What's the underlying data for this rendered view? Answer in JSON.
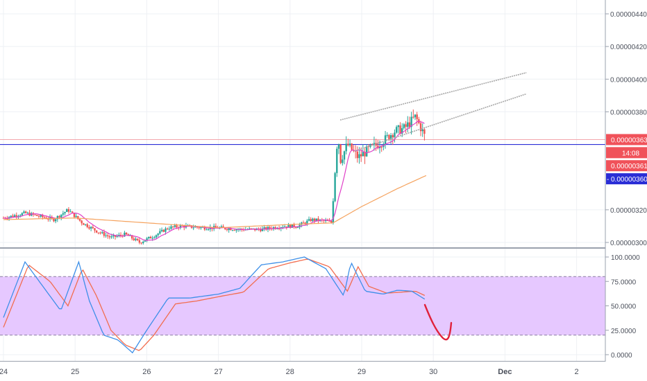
{
  "price_axis": {
    "ticks": [
      {
        "label": "0.00000440",
        "value": 440
      },
      {
        "label": "0.00000420",
        "value": 420
      },
      {
        "label": "0.00000400",
        "value": 400
      },
      {
        "label": "0.00000380",
        "value": 380
      },
      {
        "label": "0.00000320",
        "value": 320
      },
      {
        "label": "0.00000300",
        "value": 300
      }
    ],
    "badges": [
      {
        "label": "0.00000363",
        "value": 363,
        "bg": "#f0525a",
        "fg": "#ffffff",
        "name": "last-price-badge"
      },
      {
        "label": "14:08",
        "value": 355,
        "bg": "#f0525a",
        "fg": "#ffffff",
        "name": "countdown-badge"
      },
      {
        "label": "0.00000361",
        "value": 347,
        "bg": "#f0525a",
        "fg": "#ffffff",
        "name": "close-price-badge"
      },
      {
        "label": "0.00000360",
        "value": 339,
        "bg": "#2a2ed6",
        "fg": "#ffffff",
        "name": "horizontal-line-badge",
        "prefix": "-"
      }
    ]
  },
  "stoch_axis": {
    "ticks": [
      {
        "label": "100.0000",
        "value": 100
      },
      {
        "label": "75.0000",
        "value": 75
      },
      {
        "label": "50.0000",
        "value": 50
      },
      {
        "label": "25.0000",
        "value": 25
      },
      {
        "label": "0.0000",
        "value": 0
      }
    ]
  },
  "time_axis": {
    "labels": [
      {
        "label": "24",
        "day": 0
      },
      {
        "label": "25",
        "day": 1
      },
      {
        "label": "26",
        "day": 2
      },
      {
        "label": "27",
        "day": 3
      },
      {
        "label": "28",
        "day": 4
      },
      {
        "label": "29",
        "day": 5
      },
      {
        "label": "30",
        "day": 6
      },
      {
        "label": "Dec",
        "day": 7,
        "bold": true
      },
      {
        "label": "2",
        "day": 8
      }
    ]
  },
  "colors": {
    "bull": "#26a69a",
    "bear": "#ef5350",
    "ma_fast": "#e040c8",
    "ma_slow": "#f5a25d",
    "hline": "#2a2ed6",
    "resist": "#f3a6ac",
    "stoch_k": "#3d8fe8",
    "stoch_d": "#f26d4f",
    "stoch_band": "#e6c8ff",
    "trend": "#a8a8a8",
    "annotation": "#e0213b",
    "grid": "#eef0f4"
  },
  "chart_data": {
    "type": "candlestick",
    "instrument_levels": {
      "horizontal_line": 360,
      "resistance_line": 363
    },
    "price_scale_unit": "1e-8",
    "price_range": [
      298,
      452
    ],
    "stoch_range": [
      -5,
      110
    ],
    "stoch_bands": [
      20,
      80
    ],
    "trendlines": [
      {
        "from": [
          4.7,
          375
        ],
        "to": [
          7.3,
          404
        ]
      },
      {
        "from": [
          4.9,
          356
        ],
        "to": [
          7.3,
          391
        ]
      }
    ],
    "candles_anchor": [
      [
        0.0,
        315
      ],
      [
        0.3,
        318
      ],
      [
        0.5,
        316
      ],
      [
        0.7,
        314
      ],
      [
        0.9,
        320
      ],
      [
        1.1,
        312
      ],
      [
        1.3,
        307
      ],
      [
        1.5,
        303
      ],
      [
        1.7,
        305
      ],
      [
        1.9,
        300
      ],
      [
        2.1,
        304
      ],
      [
        2.3,
        309
      ],
      [
        2.5,
        310
      ],
      [
        2.8,
        309
      ],
      [
        3.0,
        309
      ],
      [
        3.3,
        308
      ],
      [
        3.6,
        308
      ],
      [
        3.9,
        310
      ],
      [
        4.1,
        310
      ],
      [
        4.3,
        314
      ],
      [
        4.5,
        313
      ],
      [
        4.6,
        312
      ],
      [
        4.65,
        345
      ],
      [
        4.8,
        360
      ],
      [
        4.95,
        352
      ],
      [
        5.1,
        357
      ],
      [
        5.3,
        362
      ],
      [
        5.45,
        368
      ],
      [
        5.6,
        370
      ],
      [
        5.75,
        377
      ],
      [
        5.85,
        368
      ],
      [
        5.9,
        363
      ]
    ],
    "ma_slow_anchor": [
      [
        0.0,
        314
      ],
      [
        1.0,
        315
      ],
      [
        2.0,
        312
      ],
      [
        3.0,
        309
      ],
      [
        4.0,
        311
      ],
      [
        4.6,
        312
      ],
      [
        5.0,
        322
      ],
      [
        5.5,
        333
      ],
      [
        5.9,
        341
      ]
    ],
    "stoch_k_anchor": [
      [
        0.0,
        38
      ],
      [
        0.3,
        95
      ],
      [
        0.6,
        65
      ],
      [
        0.8,
        45
      ],
      [
        1.05,
        95
      ],
      [
        1.2,
        55
      ],
      [
        1.4,
        20
      ],
      [
        1.6,
        15
      ],
      [
        1.8,
        2
      ],
      [
        2.0,
        25
      ],
      [
        2.3,
        58
      ],
      [
        2.6,
        58
      ],
      [
        3.0,
        62
      ],
      [
        3.3,
        68
      ],
      [
        3.6,
        92
      ],
      [
        3.9,
        95
      ],
      [
        4.2,
        100
      ],
      [
        4.5,
        88
      ],
      [
        4.75,
        60
      ],
      [
        4.85,
        95
      ],
      [
        5.05,
        65
      ],
      [
        5.3,
        62
      ],
      [
        5.5,
        66
      ],
      [
        5.7,
        65
      ],
      [
        5.9,
        56
      ]
    ],
    "stoch_d_anchor": [
      [
        0.0,
        28
      ],
      [
        0.35,
        92
      ],
      [
        0.65,
        75
      ],
      [
        0.9,
        50
      ],
      [
        1.1,
        88
      ],
      [
        1.3,
        60
      ],
      [
        1.5,
        25
      ],
      [
        1.7,
        10
      ],
      [
        1.9,
        4
      ],
      [
        2.1,
        20
      ],
      [
        2.4,
        52
      ],
      [
        2.7,
        55
      ],
      [
        3.05,
        60
      ],
      [
        3.35,
        64
      ],
      [
        3.7,
        88
      ],
      [
        4.0,
        94
      ],
      [
        4.25,
        98
      ],
      [
        4.55,
        90
      ],
      [
        4.8,
        65
      ],
      [
        4.95,
        90
      ],
      [
        5.1,
        70
      ],
      [
        5.35,
        63
      ],
      [
        5.55,
        64
      ],
      [
        5.75,
        65
      ],
      [
        5.9,
        60
      ]
    ]
  }
}
